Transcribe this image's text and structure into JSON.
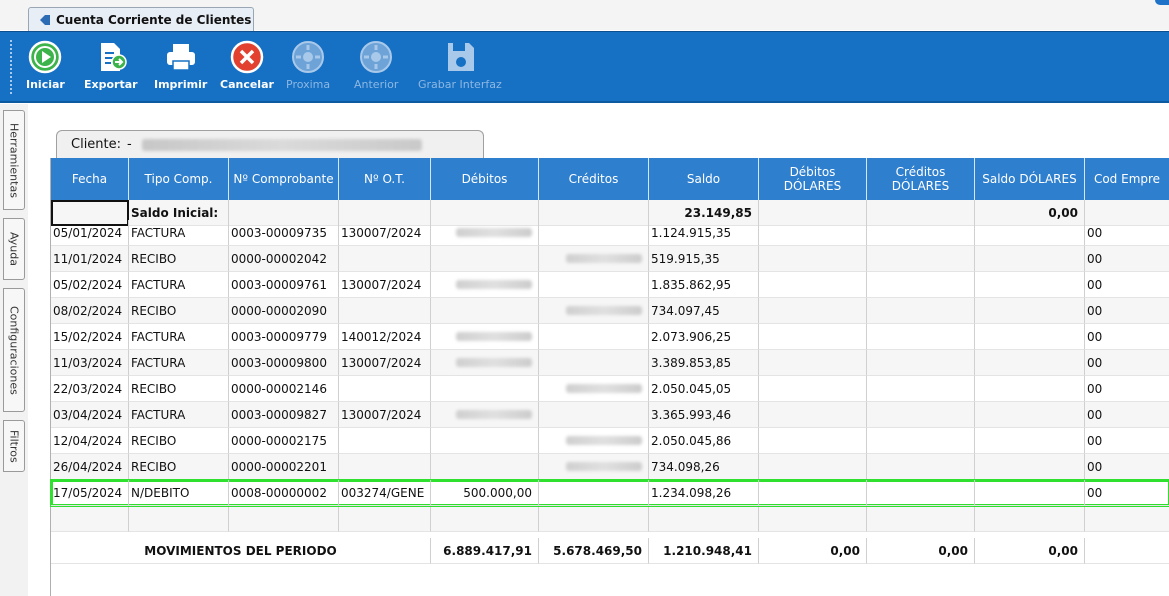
{
  "window": {
    "tab_title": "Cuenta Corriente de Clientes"
  },
  "toolbar": {
    "buttons": [
      {
        "label": "Iniciar",
        "icon": "play-icon",
        "enabled": true
      },
      {
        "label": "Exportar",
        "icon": "export-icon",
        "enabled": true
      },
      {
        "label": "Imprimir",
        "icon": "printer-icon",
        "enabled": true
      },
      {
        "label": "Cancelar",
        "icon": "cancel-icon",
        "enabled": true
      },
      {
        "label": "Proxima",
        "icon": "next-icon",
        "enabled": false
      },
      {
        "label": "Anterior",
        "icon": "previous-icon",
        "enabled": false
      },
      {
        "label": "Grabar Interfaz",
        "icon": "save-icon",
        "enabled": false
      }
    ]
  },
  "sidebar": {
    "tabs": [
      "Herramientas",
      "Ayuda",
      "Configuraciones",
      "Filtros"
    ]
  },
  "client": {
    "label": "Cliente:",
    "separator": "-"
  },
  "table": {
    "columns": [
      "Fecha",
      "Tipo Comp.",
      "Nº Comprobante",
      "Nº O.T.",
      "Débitos",
      "Créditos",
      "Saldo",
      "Débitos DÓLARES",
      "Créditos DÓLARES",
      "Saldo DÓLARES",
      "Cod Empre"
    ],
    "initial": {
      "label": "Saldo Inicial:",
      "saldo": "23.149,85",
      "saldo_dolares": "0,00"
    },
    "rows": [
      {
        "fecha": "05/01/2024",
        "tipo": "FACTURA",
        "comprobante": "0003-00009735",
        "ot": "130007/2024",
        "debitos": "",
        "creditos": "",
        "saldo": "1.124.915,35",
        "cod": "00"
      },
      {
        "fecha": "11/01/2024",
        "tipo": "RECIBO",
        "comprobante": "0000-00002042",
        "ot": "",
        "debitos": "",
        "creditos": "",
        "saldo": "519.915,35",
        "cod": "00"
      },
      {
        "fecha": "05/02/2024",
        "tipo": "FACTURA",
        "comprobante": "0003-00009761",
        "ot": "130007/2024",
        "debitos": "",
        "creditos": "",
        "saldo": "1.835.862,95",
        "cod": "00"
      },
      {
        "fecha": "08/02/2024",
        "tipo": "RECIBO",
        "comprobante": "0000-00002090",
        "ot": "",
        "debitos": "",
        "creditos": "",
        "saldo": "734.097,45",
        "cod": "00"
      },
      {
        "fecha": "15/02/2024",
        "tipo": "FACTURA",
        "comprobante": "0003-00009779",
        "ot": "140012/2024",
        "debitos": "",
        "creditos": "",
        "saldo": "2.073.906,25",
        "cod": "00"
      },
      {
        "fecha": "11/03/2024",
        "tipo": "FACTURA",
        "comprobante": "0003-00009800",
        "ot": "130007/2024",
        "debitos": "",
        "creditos": "",
        "saldo": "3.389.853,85",
        "cod": "00"
      },
      {
        "fecha": "22/03/2024",
        "tipo": "RECIBO",
        "comprobante": "0000-00002146",
        "ot": "",
        "debitos": "",
        "creditos": "",
        "saldo": "2.050.045,05",
        "cod": "00"
      },
      {
        "fecha": "03/04/2024",
        "tipo": "FACTURA",
        "comprobante": "0003-00009827",
        "ot": "130007/2024",
        "debitos": "",
        "creditos": "",
        "saldo": "3.365.993,46",
        "cod": "00"
      },
      {
        "fecha": "12/04/2024",
        "tipo": "RECIBO",
        "comprobante": "0000-00002175",
        "ot": "",
        "debitos": "",
        "creditos": "",
        "saldo": "2.050.045,86",
        "cod": "00"
      },
      {
        "fecha": "26/04/2024",
        "tipo": "RECIBO",
        "comprobante": "0000-00002201",
        "ot": "",
        "debitos": "",
        "creditos": "",
        "saldo": "734.098,26",
        "cod": "00"
      },
      {
        "fecha": "17/05/2024",
        "tipo": "N/DEBITO",
        "comprobante": "0008-00000002",
        "ot": "003274/GENE",
        "debitos": "500.000,00",
        "creditos": "",
        "saldo": "1.234.098,26",
        "cod": "00"
      }
    ],
    "totals": {
      "label": "MOVIMIENTOS DEL PERIODO",
      "debitos": "6.889.417,91",
      "creditos": "5.678.469,50",
      "saldo": "1.210.948,41",
      "debitos_dolares": "0,00",
      "creditos_dolares": "0,00",
      "saldo_dolares": "0,00"
    }
  }
}
